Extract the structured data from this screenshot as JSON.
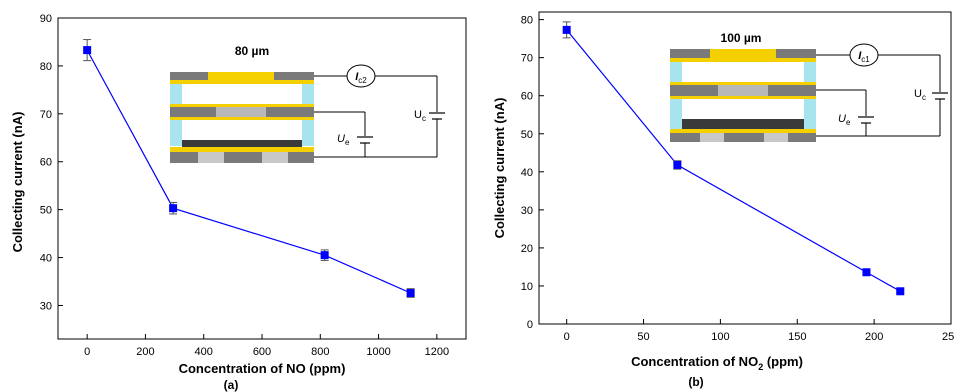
{
  "chart_data": [
    {
      "type": "line",
      "panel_label": "(a)",
      "xlabel": "Concentration of NO (ppm)",
      "ylabel": "Collecting current (nA)",
      "xlim": [
        -100,
        1300
      ],
      "ylim": [
        23,
        90
      ],
      "xticks": [
        0,
        200,
        400,
        600,
        800,
        1000,
        1200
      ],
      "yticks": [
        30,
        40,
        50,
        60,
        70,
        80,
        90
      ],
      "series": [
        {
          "values": [
            {
              "x": 0,
              "y": 83.3,
              "err": 2.2
            },
            {
              "x": 295,
              "y": 50.3,
              "err": 1.2
            },
            {
              "x": 815,
              "y": 40.5,
              "err": 1.1
            },
            {
              "x": 1110,
              "y": 32.6,
              "err": 0.9
            }
          ]
        }
      ],
      "color": "#0000ff",
      "inset": {
        "title": "80 µm",
        "current_label": "I",
        "current_sub": "c2",
        "emitter_label": "U",
        "emitter_sub": "e",
        "collector_label": "U",
        "collector_sub": "c"
      }
    },
    {
      "type": "line",
      "panel_label": "(b)",
      "xlabel": "Concentration of NO",
      "xlabel_sub": "2",
      "xlabel_unit": " (ppm)",
      "ylabel": "Collecting current (nA)",
      "xlim": [
        -18,
        250
      ],
      "ylim": [
        0,
        82
      ],
      "xticks": [
        0,
        50,
        100,
        150,
        200
      ],
      "xtick_partial": "25",
      "yticks": [
        0,
        10,
        20,
        30,
        40,
        50,
        60,
        70,
        80
      ],
      "series": [
        {
          "values": [
            {
              "x": 0,
              "y": 77.3,
              "err": 2.1
            },
            {
              "x": 72,
              "y": 41.8,
              "err": 1.1
            },
            {
              "x": 195,
              "y": 13.6,
              "err": 0.6
            },
            {
              "x": 217,
              "y": 8.6,
              "err": 0.4
            }
          ]
        }
      ],
      "color": "#0000ff",
      "inset": {
        "title": "100 µm",
        "current_label": "I",
        "current_sub": "c1",
        "emitter_label": "U",
        "emitter_sub": "e",
        "collector_label": "U",
        "collector_sub": "c"
      }
    }
  ]
}
